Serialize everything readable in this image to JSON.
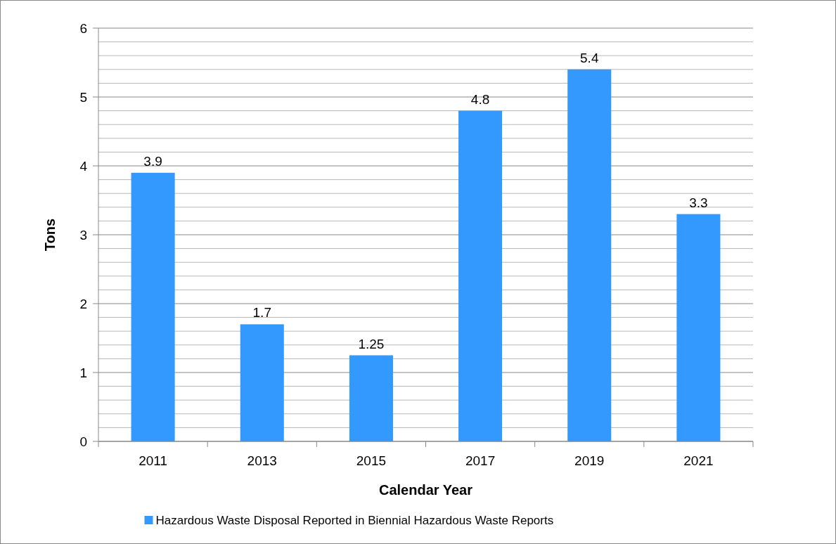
{
  "chart_data": {
    "type": "bar",
    "xlabel": "Calendar Year",
    "ylabel": "Tons",
    "categories": [
      "2011",
      "2013",
      "2015",
      "2017",
      "2019",
      "2021"
    ],
    "series": [
      {
        "name": "Hazardous Waste Disposal Reported in Biennial Hazardous Waste Reports",
        "color": "#3399ff",
        "values": [
          3.9,
          1.7,
          1.25,
          4.8,
          5.4,
          3.3
        ]
      }
    ],
    "ylim": [
      0,
      6
    ],
    "yticks": [
      0,
      {
        "value": 0.2,
        "label": null
      },
      {
        "value": 0.4,
        "label": null
      },
      {
        "value": 0.6,
        "label": null
      },
      {
        "value": 0.8,
        "label": null
      },
      1,
      {
        "value": 1.2,
        "label": null
      },
      {
        "value": 1.4,
        "label": null
      },
      {
        "value": 1.6,
        "label": null
      },
      {
        "value": 1.8,
        "label": null
      },
      2,
      {
        "value": 2.2,
        "label": null
      },
      {
        "value": 2.4,
        "label": null
      },
      {
        "value": 2.6,
        "label": null
      },
      {
        "value": 2.8,
        "label": null
      },
      3,
      {
        "value": 3.2,
        "label": null
      },
      {
        "value": 3.4,
        "label": null
      },
      {
        "value": 3.6,
        "label": null
      },
      {
        "value": 3.8,
        "label": null
      },
      4,
      {
        "value": 4.2,
        "label": null
      },
      {
        "value": 4.4,
        "label": null
      },
      {
        "value": 4.6,
        "label": null
      },
      {
        "value": 4.8,
        "label": null
      },
      5,
      {
        "value": 5.2,
        "label": null
      },
      {
        "value": 5.4,
        "label": null
      },
      {
        "value": 5.6,
        "label": null
      },
      {
        "value": 5.8,
        "label": null
      },
      6
    ],
    "grid": "y",
    "data_labels": true,
    "legend": "bottom"
  }
}
